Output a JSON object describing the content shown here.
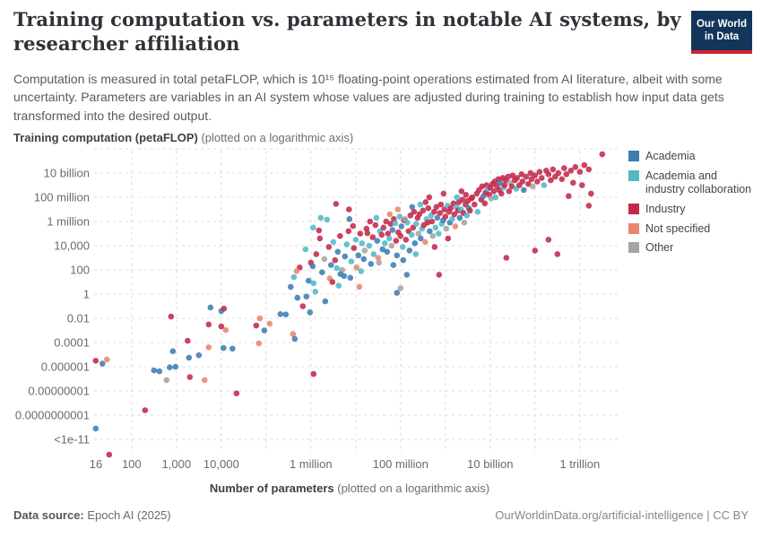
{
  "header": {
    "title": "Training computation vs. parameters in notable AI systems, by\nresearcher affiliation",
    "logo_line1": "Our World",
    "logo_line2": "in Data"
  },
  "subtitle": "Computation is measured in total petaFLOP, which is 10¹⁵ floating-point operations estimated from AI literature, albeit with some uncertainty. Parameters are variables in an AI system whose values are adjusted during training to establish how input data gets transformed into the desired output.",
  "chart_data": {
    "type": "scatter",
    "x_axis": {
      "title_bold": "Number of parameters",
      "title_note": " (plotted on a logarithmic axis)",
      "scale": "log10",
      "range_log": [
        1.2,
        12.6
      ],
      "ticks": [
        {
          "log": 1.204,
          "label": "16",
          "grid": false
        },
        {
          "log": 2,
          "label": "100"
        },
        {
          "log": 3,
          "label": "1,000"
        },
        {
          "log": 4,
          "label": "10,000"
        },
        {
          "log": 5,
          "label": ""
        },
        {
          "log": 6,
          "label": "1 million"
        },
        {
          "log": 7,
          "label": ""
        },
        {
          "log": 8,
          "label": "100 million"
        },
        {
          "log": 9,
          "label": ""
        },
        {
          "log": 10,
          "label": "10 billion"
        },
        {
          "log": 11,
          "label": ""
        },
        {
          "log": 12,
          "label": "1 trillion"
        }
      ]
    },
    "y_axis": {
      "title_bold": "Training computation (petaFLOP)",
      "title_note": " (plotted on a logarithmic axis)",
      "scale": "log10",
      "range_log": [
        -13,
        12
      ],
      "ticks": [
        {
          "log": 12,
          "label": ""
        },
        {
          "log": 10,
          "label": "10 billion"
        },
        {
          "log": 8,
          "label": "100 million"
        },
        {
          "log": 6,
          "label": "1 million"
        },
        {
          "log": 4,
          "label": "10,000"
        },
        {
          "log": 2,
          "label": "100"
        },
        {
          "log": 0,
          "label": "1"
        },
        {
          "log": -2,
          "label": "0.01"
        },
        {
          "log": -4,
          "label": "0.0001"
        },
        {
          "log": -6,
          "label": "0.000001"
        },
        {
          "log": -8,
          "label": "0.00000001"
        },
        {
          "log": -10,
          "label": "0.0000000001"
        },
        {
          "log": -12,
          "label": "<1e-11"
        }
      ]
    },
    "categories": [
      {
        "label": "Academia",
        "color": "#3d7db4"
      },
      {
        "label": "Academia and industry collaboration",
        "color": "#54b8c7"
      },
      {
        "label": "Industry",
        "color": "#c3294a"
      },
      {
        "label": "Not specified",
        "color": "#e6876e"
      },
      {
        "label": "Other",
        "color": "#a7a3a0"
      }
    ],
    "points_format": [
      "log10_parameters",
      "log10_petaflop",
      "category_index"
    ],
    "points": [
      [
        1.2,
        -5.5,
        2
      ],
      [
        1.35,
        -5.75,
        0
      ],
      [
        1.45,
        -5.4,
        3
      ],
      [
        1.2,
        -11.1,
        0
      ],
      [
        1.5,
        -13.3,
        2
      ],
      [
        2.5,
        -6.3,
        0
      ],
      [
        2.62,
        -6.38,
        0
      ],
      [
        2.85,
        -6.05,
        0
      ],
      [
        2.98,
        -6.0,
        0
      ],
      [
        2.78,
        -7.1,
        4
      ],
      [
        2.92,
        -4.72,
        0
      ],
      [
        3.28,
        -5.25,
        0
      ],
      [
        3.5,
        -5.05,
        0
      ],
      [
        3.25,
        -3.85,
        2
      ],
      [
        3.72,
        -4.4,
        3
      ],
      [
        2.3,
        -9.6,
        2
      ],
      [
        3.3,
        -6.85,
        2
      ],
      [
        3.63,
        -7.1,
        3
      ],
      [
        4.34,
        -8.2,
        2
      ],
      [
        4.05,
        -4.45,
        0
      ],
      [
        4.25,
        -4.5,
        0
      ],
      [
        4.86,
        -2.0,
        3
      ],
      [
        4.78,
        -2.6,
        2
      ],
      [
        5.08,
        -2.44,
        3
      ],
      [
        4.96,
        -3.0,
        0
      ],
      [
        5.32,
        -1.65,
        0
      ],
      [
        5.44,
        -1.68,
        0
      ],
      [
        5.6,
        -3.3,
        3
      ],
      [
        5.64,
        -3.7,
        0
      ],
      [
        4.84,
        -4.07,
        3
      ],
      [
        6.06,
        -6.6,
        2
      ],
      [
        2.88,
        -1.85,
        2
      ],
      [
        3.76,
        -1.1,
        0
      ],
      [
        4.0,
        -1.4,
        0
      ],
      [
        4.06,
        -1.2,
        2
      ],
      [
        3.72,
        -2.5,
        2
      ],
      [
        4.0,
        -2.67,
        2
      ],
      [
        4.1,
        -2.96,
        3
      ],
      [
        5.55,
        0.6,
        0
      ],
      [
        5.62,
        1.4,
        1
      ],
      [
        5.7,
        -0.3,
        0
      ],
      [
        5.75,
        2.2,
        2
      ],
      [
        5.82,
        -1.0,
        2
      ],
      [
        5.88,
        3.7,
        1
      ],
      [
        5.9,
        -0.2,
        0
      ],
      [
        5.95,
        1.1,
        0
      ],
      [
        6.0,
        2.6,
        2
      ],
      [
        6.04,
        2.3,
        0
      ],
      [
        6.06,
        0.9,
        1
      ],
      [
        6.1,
        0.2,
        1
      ],
      [
        6.12,
        3.3,
        2
      ],
      [
        6.18,
        5.26,
        2
      ],
      [
        6.22,
        6.3,
        1
      ],
      [
        6.25,
        1.8,
        0
      ],
      [
        6.3,
        2.9,
        4
      ],
      [
        6.32,
        -0.6,
        0
      ],
      [
        6.36,
        6.15,
        1
      ],
      [
        6.4,
        3.9,
        2
      ],
      [
        6.42,
        1.3,
        3
      ],
      [
        6.45,
        2.4,
        0
      ],
      [
        6.5,
        4.3,
        1
      ],
      [
        6.54,
        2.8,
        2
      ],
      [
        6.56,
        7.45,
        2
      ],
      [
        6.6,
        3.5,
        0
      ],
      [
        6.62,
        0.7,
        1
      ],
      [
        6.65,
        4.8,
        2
      ],
      [
        6.7,
        2.0,
        4
      ],
      [
        6.74,
        1.5,
        0
      ],
      [
        6.76,
        3.1,
        0
      ],
      [
        6.8,
        4.1,
        1
      ],
      [
        6.84,
        5.2,
        2
      ],
      [
        6.86,
        6.2,
        0
      ],
      [
        6.88,
        1.35,
        0
      ],
      [
        6.9,
        2.7,
        1
      ],
      [
        6.94,
        5.63,
        2
      ],
      [
        6.96,
        3.8,
        2
      ],
      [
        7.0,
        4.5,
        1
      ],
      [
        7.02,
        2.2,
        3
      ],
      [
        7.06,
        3.2,
        0
      ],
      [
        7.08,
        0.6,
        3
      ],
      [
        7.1,
        5.0,
        2
      ],
      [
        7.14,
        4.2,
        1
      ],
      [
        7.18,
        2.9,
        0
      ],
      [
        7.2,
        3.6,
        4
      ],
      [
        7.24,
        5.4,
        2
      ],
      [
        7.26,
        5.04,
        2
      ],
      [
        7.3,
        4.0,
        1
      ],
      [
        7.34,
        2.5,
        0
      ],
      [
        7.38,
        4.7,
        2
      ],
      [
        7.4,
        3.3,
        1
      ],
      [
        7.44,
        5.7,
        2
      ],
      [
        7.48,
        4.4,
        0
      ],
      [
        7.5,
        3.0,
        3
      ],
      [
        7.54,
        5.2,
        1
      ],
      [
        7.58,
        4.9,
        2
      ],
      [
        7.6,
        3.7,
        0
      ],
      [
        5.68,
        1.9,
        3
      ],
      [
        5.98,
        -1.5,
        0
      ],
      [
        6.48,
        1.0,
        2
      ],
      [
        6.58,
        2.15,
        1
      ],
      [
        6.66,
        1.65,
        0
      ],
      [
        7.12,
        1.9,
        1
      ],
      [
        7.32,
        6.0,
        2
      ],
      [
        7.52,
        2.6,
        4
      ],
      [
        7.46,
        6.3,
        1
      ],
      [
        6.2,
        4.6,
        2
      ],
      [
        6.05,
        5.5,
        1
      ],
      [
        6.85,
        7.0,
        2
      ],
      [
        7.92,
        0.1,
        0
      ],
      [
        8.0,
        0.5,
        4
      ],
      [
        8.14,
        1.6,
        0
      ],
      [
        7.62,
        5.5,
        2
      ],
      [
        7.65,
        4.2,
        1
      ],
      [
        7.68,
        6.0,
        2
      ],
      [
        7.7,
        3.5,
        0
      ],
      [
        7.72,
        5.0,
        2
      ],
      [
        7.75,
        4.6,
        1
      ],
      [
        7.78,
        5.8,
        2
      ],
      [
        7.8,
        4.0,
        4
      ],
      [
        7.82,
        5.3,
        0
      ],
      [
        7.85,
        6.2,
        2
      ],
      [
        7.88,
        5.85,
        1
      ],
      [
        7.9,
        4.4,
        2
      ],
      [
        7.92,
        3.2,
        0
      ],
      [
        7.95,
        5.1,
        2
      ],
      [
        7.98,
        6.4,
        1
      ],
      [
        8.0,
        4.8,
        2
      ],
      [
        8.02,
        5.6,
        0
      ],
      [
        8.05,
        3.9,
        1
      ],
      [
        8.08,
        6.1,
        2
      ],
      [
        8.1,
        6.2,
        4
      ],
      [
        8.12,
        4.5,
        2
      ],
      [
        8.15,
        5.9,
        1
      ],
      [
        8.18,
        5.2,
        2
      ],
      [
        8.2,
        3.6,
        0
      ],
      [
        8.22,
        6.5,
        2
      ],
      [
        8.25,
        4.9,
        1
      ],
      [
        8.28,
        5.5,
        2
      ],
      [
        8.3,
        6.8,
        2
      ],
      [
        8.32,
        4.2,
        0
      ],
      [
        8.35,
        5.8,
        1
      ],
      [
        8.38,
        6.3,
        2
      ],
      [
        8.4,
        5.0,
        4
      ],
      [
        8.42,
        6.6,
        2
      ],
      [
        8.45,
        4.6,
        0
      ],
      [
        8.48,
        5.4,
        1
      ],
      [
        8.5,
        6.9,
        2
      ],
      [
        8.52,
        5.7,
        2
      ],
      [
        8.55,
        4.3,
        3
      ],
      [
        8.58,
        6.2,
        1
      ],
      [
        8.6,
        5.9,
        2
      ],
      [
        8.62,
        7.1,
        2
      ],
      [
        8.65,
        5.2,
        0
      ],
      [
        8.68,
        6.5,
        1
      ],
      [
        8.7,
        6.0,
        2
      ],
      [
        8.72,
        4.8,
        4
      ],
      [
        8.75,
        6.8,
        2
      ],
      [
        8.78,
        5.5,
        1
      ],
      [
        8.8,
        7.2,
        2
      ],
      [
        8.82,
        6.3,
        0
      ],
      [
        8.85,
        5.0,
        1
      ],
      [
        8.86,
        1.6,
        2
      ],
      [
        8.88,
        6.7,
        2
      ],
      [
        8.9,
        7.4,
        2
      ],
      [
        8.92,
        5.8,
        1
      ],
      [
        8.95,
        6.1,
        0
      ],
      [
        8.98,
        7.0,
        2
      ],
      [
        9.0,
        6.4,
        2
      ],
      [
        9.02,
        5.4,
        4
      ],
      [
        9.05,
        7.3,
        1
      ],
      [
        9.08,
        6.8,
        2
      ],
      [
        9.1,
        5.9,
        0
      ],
      [
        9.12,
        7.1,
        2
      ],
      [
        9.15,
        6.2,
        1
      ],
      [
        9.18,
        7.5,
        2
      ],
      [
        9.2,
        6.6,
        2
      ],
      [
        9.22,
        5.6,
        3
      ],
      [
        9.25,
        7.2,
        1
      ],
      [
        9.28,
        6.9,
        2
      ],
      [
        9.3,
        7.6,
        2
      ],
      [
        9.32,
        6.3,
        0
      ],
      [
        9.35,
        7.0,
        1
      ],
      [
        9.38,
        7.8,
        2
      ],
      [
        9.4,
        6.7,
        2
      ],
      [
        9.42,
        5.9,
        4
      ],
      [
        9.45,
        7.4,
        2
      ],
      [
        9.48,
        6.5,
        1
      ],
      [
        9.5,
        7.7,
        2
      ],
      [
        9.52,
        7.1,
        0
      ],
      [
        9.55,
        6.9,
        2
      ],
      [
        9.58,
        7.9,
        2
      ],
      [
        7.76,
        6.6,
        3
      ],
      [
        7.94,
        7.0,
        3
      ],
      [
        8.26,
        7.2,
        0
      ],
      [
        8.56,
        7.6,
        2
      ],
      [
        8.76,
        3.9,
        2
      ],
      [
        9.06,
        4.6,
        2
      ],
      [
        9.26,
        8.0,
        1
      ],
      [
        9.46,
        8.2,
        2
      ],
      [
        8.44,
        7.4,
        1
      ],
      [
        8.64,
        8.0,
        2
      ],
      [
        8.06,
        2.8,
        0
      ],
      [
        8.34,
        3.3,
        1
      ],
      [
        7.84,
        2.4,
        0
      ],
      [
        8.96,
        8.3,
        2
      ],
      [
        9.36,
        8.5,
        2
      ],
      [
        9.6,
        8.0,
        2
      ],
      [
        9.65,
        7.4,
        2
      ],
      [
        9.7,
        8.3,
        2
      ],
      [
        9.72,
        6.8,
        1
      ],
      [
        9.75,
        8.6,
        2
      ],
      [
        9.8,
        7.8,
        2
      ],
      [
        9.82,
        8.9,
        2
      ],
      [
        9.85,
        8.1,
        0
      ],
      [
        9.88,
        7.5,
        2
      ],
      [
        9.9,
        8.4,
        2
      ],
      [
        9.92,
        9.0,
        2
      ],
      [
        9.95,
        8.7,
        1
      ],
      [
        9.98,
        8.2,
        2
      ],
      [
        10.0,
        8.8,
        2
      ],
      [
        10.02,
        7.9,
        4
      ],
      [
        10.05,
        9.1,
        2
      ],
      [
        10.08,
        8.5,
        2
      ],
      [
        10.1,
        9.3,
        2
      ],
      [
        10.12,
        8.0,
        1
      ],
      [
        10.15,
        8.9,
        2
      ],
      [
        10.18,
        9.5,
        2
      ],
      [
        10.2,
        8.6,
        2
      ],
      [
        10.22,
        9.2,
        0
      ],
      [
        10.25,
        8.3,
        2
      ],
      [
        10.28,
        9.6,
        2
      ],
      [
        10.3,
        8.8,
        1
      ],
      [
        10.32,
        9.0,
        2
      ],
      [
        10.35,
        9.4,
        2
      ],
      [
        10.36,
        3.0,
        2
      ],
      [
        10.4,
        9.7,
        2
      ],
      [
        10.42,
        8.5,
        2
      ],
      [
        10.45,
        9.2,
        4
      ],
      [
        10.48,
        8.9,
        2
      ],
      [
        10.5,
        9.8,
        2
      ],
      [
        10.55,
        9.4,
        2
      ],
      [
        10.58,
        8.7,
        1
      ],
      [
        10.6,
        9.6,
        2
      ],
      [
        10.65,
        9.0,
        2
      ],
      [
        10.7,
        9.9,
        2
      ],
      [
        10.72,
        9.3,
        2
      ],
      [
        10.75,
        8.6,
        0
      ],
      [
        10.8,
        9.7,
        2
      ],
      [
        10.85,
        9.1,
        2
      ],
      [
        10.9,
        10.0,
        2
      ],
      [
        10.92,
        9.5,
        2
      ],
      [
        10.95,
        8.9,
        4
      ],
      [
        11.0,
        3.6,
        2
      ],
      [
        11.0,
        9.8,
        2
      ],
      [
        11.05,
        9.3,
        2
      ],
      [
        11.1,
        10.1,
        2
      ],
      [
        11.15,
        9.6,
        2
      ],
      [
        11.2,
        9.0,
        1
      ],
      [
        11.25,
        10.2,
        2
      ],
      [
        11.3,
        4.5,
        2
      ],
      [
        11.3,
        9.9,
        2
      ],
      [
        11.35,
        9.4,
        2
      ],
      [
        11.4,
        10.3,
        2
      ],
      [
        11.45,
        9.7,
        2
      ],
      [
        11.5,
        3.3,
        2
      ],
      [
        11.52,
        10.0,
        2
      ],
      [
        11.6,
        9.5,
        2
      ],
      [
        11.65,
        10.4,
        2
      ],
      [
        11.7,
        9.9,
        2
      ],
      [
        11.75,
        8.1,
        2
      ],
      [
        11.8,
        10.2,
        2
      ],
      [
        11.85,
        9.2,
        2
      ],
      [
        11.9,
        10.5,
        2
      ],
      [
        12.0,
        10.1,
        2
      ],
      [
        12.05,
        9.0,
        2
      ],
      [
        12.1,
        10.65,
        2
      ],
      [
        12.5,
        11.55,
        2
      ],
      [
        12.2,
        10.3,
        2
      ],
      [
        12.2,
        7.3,
        2
      ],
      [
        12.25,
        8.3,
        2
      ]
    ]
  },
  "footer": {
    "source_label": "Data source:",
    "source_value": " Epoch AI (2025)",
    "right": "OurWorldinData.org/artificial-intelligence | CC BY"
  }
}
